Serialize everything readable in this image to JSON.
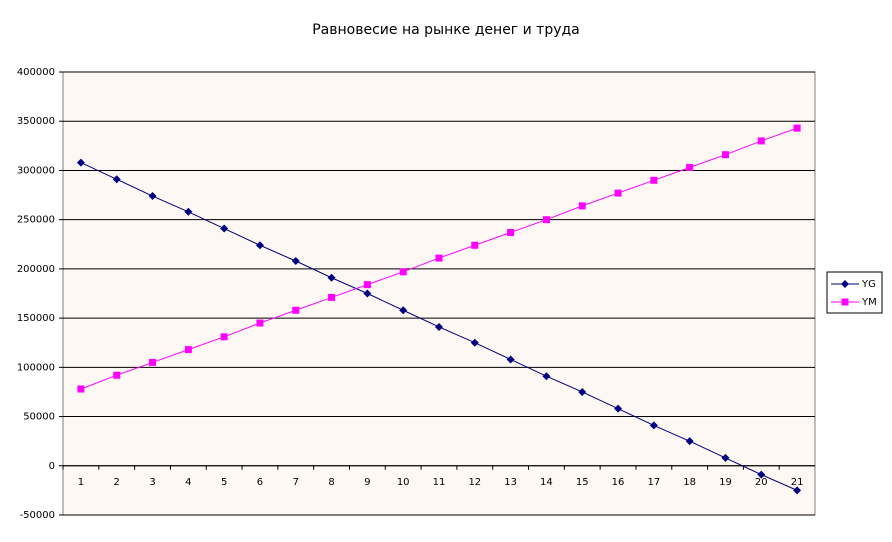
{
  "chart_data": {
    "type": "line",
    "title": "Равновесие на рынке денег и труда",
    "categories": [
      "1",
      "2",
      "3",
      "4",
      "5",
      "6",
      "7",
      "8",
      "9",
      "10",
      "11",
      "12",
      "13",
      "14",
      "15",
      "16",
      "17",
      "18",
      "19",
      "20",
      "21"
    ],
    "series": [
      {
        "name": "YG",
        "color": "#000080",
        "marker": "diamond",
        "values": [
          308000,
          291000,
          274000,
          258000,
          241000,
          224000,
          208000,
          191000,
          175000,
          158000,
          141000,
          125000,
          108000,
          91000,
          75000,
          58000,
          41000,
          25000,
          8000,
          -9000,
          -25000
        ]
      },
      {
        "name": "YM",
        "color": "#ff00ff",
        "marker": "square",
        "values": [
          78000,
          92000,
          105000,
          118000,
          131000,
          145000,
          158000,
          171000,
          184000,
          197000,
          211000,
          224000,
          237000,
          250000,
          264000,
          277000,
          290000,
          303000,
          316000,
          330000,
          343000
        ]
      }
    ],
    "ylim": [
      -50000,
      400000
    ],
    "yticks": [
      -50000,
      0,
      50000,
      100000,
      150000,
      200000,
      250000,
      300000,
      350000,
      400000
    ],
    "grid": true,
    "legend": "right"
  }
}
